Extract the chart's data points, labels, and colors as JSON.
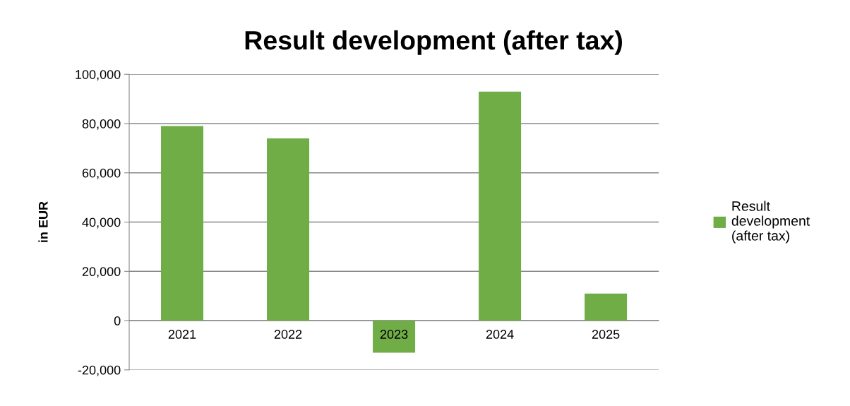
{
  "chart_data": {
    "type": "bar",
    "title": "Result development (after tax)",
    "ylabel": "in EUR",
    "categories": [
      "2021",
      "2022",
      "2023",
      "2024",
      "2025"
    ],
    "series": [
      {
        "name": "Result\ndevelopment\n(after tax)",
        "color": "#70ad47",
        "values": [
          79000,
          74000,
          -13000,
          93000,
          11000
        ]
      }
    ],
    "ylim": [
      -20000,
      100000
    ],
    "yticks": [
      {
        "value": -20000,
        "label": "-20,000"
      },
      0,
      {
        "value": 20000,
        "label": "20,000"
      },
      {
        "value": 40000,
        "label": "40,000"
      },
      {
        "value": 60000,
        "label": "60,000"
      },
      {
        "value": 80000,
        "label": "80,000"
      },
      {
        "value": 100000,
        "label": "100,000"
      }
    ],
    "grid": "y",
    "legend": "right"
  }
}
